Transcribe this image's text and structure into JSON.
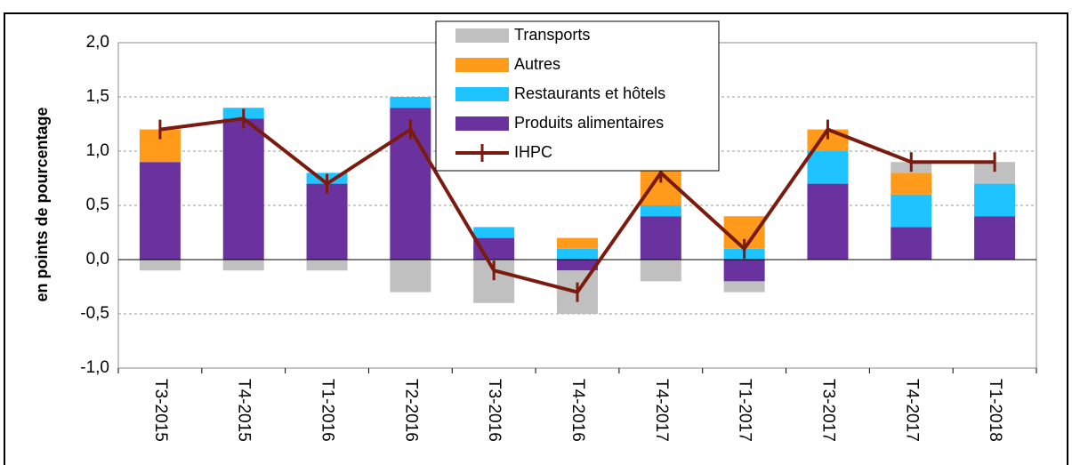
{
  "chart_data": {
    "type": "bar",
    "y_label": "en points de pourcentage",
    "categories": [
      "T3-2015",
      "T4-2015",
      "T1-2016",
      "T2-2016",
      "T3-2016",
      "T4-2016",
      "T4-2017",
      "T1-2017",
      "T3-2017",
      "T4-2017",
      "T1-2018"
    ],
    "series": [
      {
        "name": "Transports",
        "color": "#c0c0c0",
        "values": [
          -0.1,
          -0.1,
          -0.1,
          -0.3,
          -0.4,
          -0.4,
          -0.2,
          -0.1,
          0,
          0.1,
          0.2
        ]
      },
      {
        "name": "Autres",
        "color": "#ff9a1a",
        "values": [
          0.3,
          0,
          0,
          0,
          0,
          0.1,
          0.5,
          0.3,
          0.2,
          0.2,
          0
        ]
      },
      {
        "name": "Restaurants et hôtels",
        "color": "#1ec3ff",
        "values": [
          0,
          0.1,
          0.1,
          0.1,
          0.1,
          0.1,
          0.1,
          0.1,
          0.3,
          0.3,
          0.3
        ]
      },
      {
        "name": "Produits alimentaires",
        "color": "#6a329f",
        "values": [
          0.9,
          1.3,
          0.7,
          1.4,
          0.2,
          -0.1,
          0.4,
          -0.2,
          0.7,
          0.3,
          0.4
        ]
      },
      {
        "name": "IHPC",
        "type": "line",
        "color": "#7b1a0e",
        "values": [
          1.2,
          1.3,
          0.7,
          1.2,
          -0.1,
          -0.3,
          0.8,
          0.1,
          1.2,
          0.9,
          0.9
        ]
      }
    ],
    "ylim": [
      -1.0,
      2.0
    ],
    "yticks": [
      {
        "value": -1.0,
        "label": "-1,0"
      },
      {
        "value": -0.5,
        "label": "-0,5"
      },
      {
        "value": 0,
        "label": "0,0"
      },
      {
        "value": 0.5,
        "label": "0,5"
      },
      {
        "value": 1.0,
        "label": "1,0"
      },
      {
        "value": 1.5,
        "label": "1,5"
      },
      {
        "value": 2.0,
        "label": "2,0"
      }
    ],
    "grid": true
  }
}
